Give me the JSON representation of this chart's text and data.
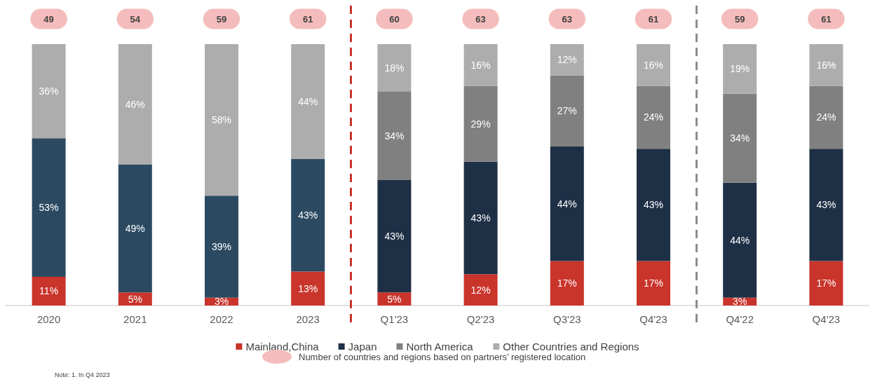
{
  "chart_data": {
    "type": "bar",
    "stacked": true,
    "categories": [
      "2020",
      "2021",
      "2022",
      "2023",
      "Q1'23",
      "Q2'23",
      "Q3'23",
      "Q4'23",
      "Q4'22",
      "Q4'23"
    ],
    "series": [
      {
        "name": "Mainland,China",
        "color": "#c9342b",
        "values": [
          11,
          5,
          3,
          13,
          5,
          12,
          17,
          17,
          3,
          17
        ],
        "value_labels": [
          "11%",
          "5%",
          "3%",
          "13%",
          "5%",
          "12%",
          "17%",
          "17%",
          "3%",
          "17%"
        ]
      },
      {
        "name": "Japan",
        "color": "#1e3046",
        "colors": [
          "#2b4a62",
          "#2b4a62",
          "#2b4a62",
          "#2b4a62",
          "#1e3046",
          "#1e3046",
          "#1e3046",
          "#1e3046",
          "#1e3046",
          "#1e3046"
        ],
        "values": [
          53,
          49,
          39,
          43,
          43,
          43,
          44,
          43,
          44,
          43
        ],
        "value_labels": [
          "53%",
          "49%",
          "39%",
          "43%",
          "43%",
          "43%",
          "44%",
          "43%",
          "44%",
          "43%"
        ]
      },
      {
        "name": "North America",
        "color": "#808080",
        "values": [
          null,
          null,
          null,
          null,
          34,
          29,
          27,
          24,
          34,
          24
        ],
        "value_labels": [
          null,
          null,
          null,
          null,
          "34%",
          "29%",
          "27%",
          "24%",
          "34%",
          "24%"
        ]
      },
      {
        "name": "Other Countries and Regions",
        "color": "#adadad",
        "values": [
          36,
          46,
          58,
          44,
          18,
          16,
          12,
          16,
          19,
          16
        ],
        "value_labels": [
          "36%",
          "46%",
          "58%",
          "44%",
          "18%",
          "16%",
          "12%",
          "16%",
          "19%",
          "16%"
        ]
      }
    ],
    "tick_labels": "x",
    "legend": "bottom",
    "annotations": [
      "49",
      "54",
      "59",
      "61",
      "60",
      "63",
      "63",
      "61",
      "59",
      "61",
      "Number of countries and regions based on partners’ registered location",
      "Note: 1. In Q4 2023"
    ]
  }
}
